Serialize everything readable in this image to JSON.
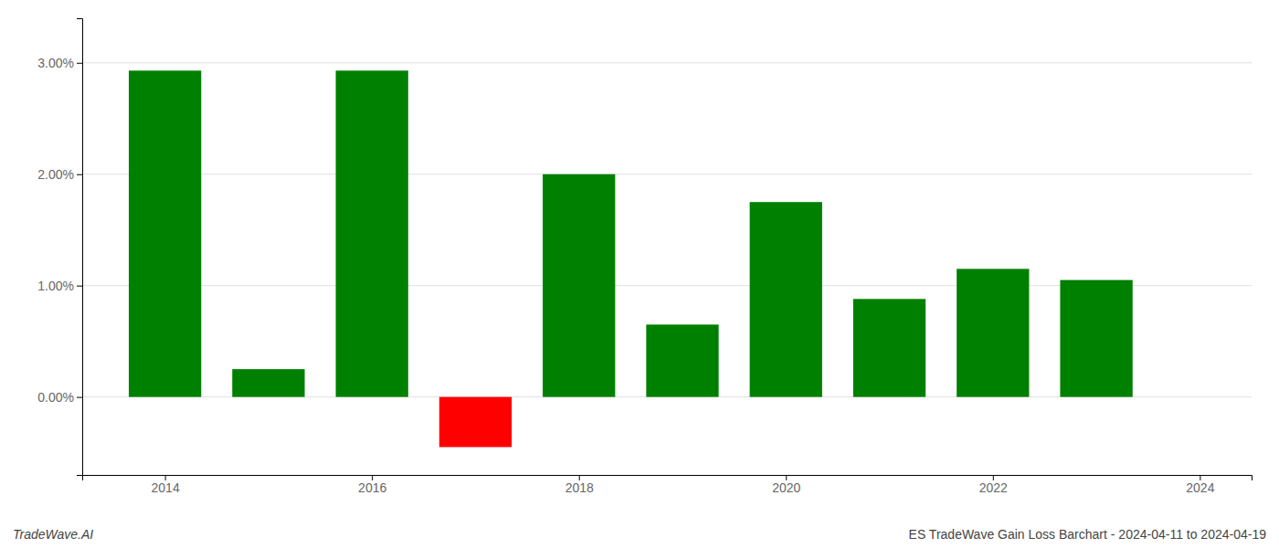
{
  "chart_data": {
    "type": "bar",
    "x": [
      2014,
      2015,
      2016,
      2017,
      2018,
      2019,
      2020,
      2021,
      2022,
      2023
    ],
    "values": [
      0.0293,
      0.0025,
      0.0293,
      -0.0045,
      0.02,
      0.0065,
      0.0175,
      0.0088,
      0.0115,
      0.0105
    ],
    "colors": [
      "#008000",
      "#008000",
      "#008000",
      "#ff0000",
      "#008000",
      "#008000",
      "#008000",
      "#008000",
      "#008000",
      "#008000"
    ],
    "xlim": [
      2013.2,
      2024.5
    ],
    "xticks": [
      2014,
      2016,
      2018,
      2020,
      2022,
      2024
    ],
    "ylim": [
      -0.007,
      0.034
    ],
    "yticks": [
      {
        "value": 0.0,
        "label": "0.00%"
      },
      {
        "value": 0.01,
        "label": "1.00%"
      },
      {
        "value": 0.02,
        "label": "2.00%"
      },
      {
        "value": 0.03,
        "label": "3.00%"
      }
    ],
    "grid": true,
    "annotations": [
      "TradeWave.AI",
      "ES TradeWave Gain Loss Barchart - 2024-04-11 to 2024-04-19"
    ]
  }
}
